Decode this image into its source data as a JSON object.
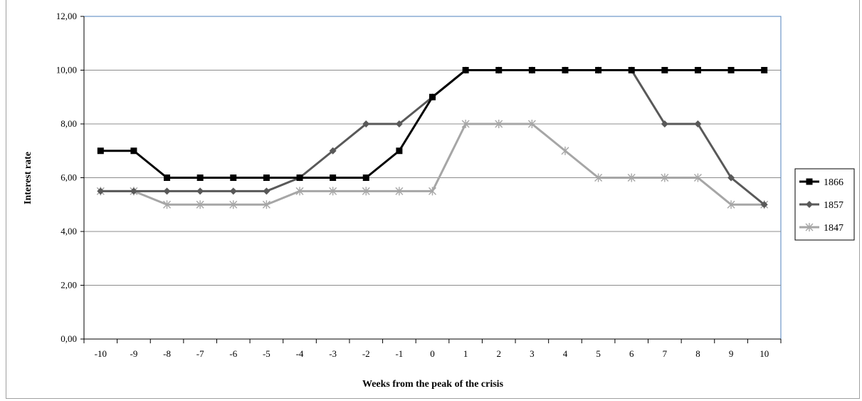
{
  "chart_data": {
    "type": "line",
    "xlabel": "Weeks from the peak of the crisis",
    "ylabel": "Interest rate",
    "categories": [
      "-10",
      "-9",
      "-8",
      "-7",
      "-6",
      "-5",
      "-4",
      "-3",
      "-2",
      "-1",
      "0",
      "1",
      "2",
      "3",
      "4",
      "5",
      "6",
      "7",
      "8",
      "9",
      "10"
    ],
    "ylim": [
      0,
      12
    ],
    "y_ticks": [
      "0,00",
      "2,00",
      "4,00",
      "6,00",
      "8,00",
      "10,00",
      "12,00"
    ],
    "grid": true,
    "legend_position": "right",
    "series": [
      {
        "name": "1866",
        "color": "#000000",
        "marker": "square",
        "values": [
          7,
          7,
          6,
          6,
          6,
          6,
          6,
          6,
          6,
          7,
          9,
          10,
          10,
          10,
          10,
          10,
          10,
          10,
          10,
          10,
          10
        ]
      },
      {
        "name": "1857",
        "color": "#595959",
        "marker": "diamond",
        "values": [
          5.5,
          5.5,
          5.5,
          5.5,
          5.5,
          5.5,
          6,
          7,
          8,
          8,
          9,
          10,
          10,
          10,
          10,
          10,
          10,
          8,
          8,
          6,
          5
        ]
      },
      {
        "name": "1847",
        "color": "#a6a6a6",
        "marker": "asterisk",
        "values": [
          5.5,
          5.5,
          5,
          5,
          5,
          5,
          5.5,
          5.5,
          5.5,
          5.5,
          5.5,
          8,
          8,
          8,
          7,
          6,
          6,
          6,
          6,
          5,
          5
        ]
      }
    ]
  }
}
